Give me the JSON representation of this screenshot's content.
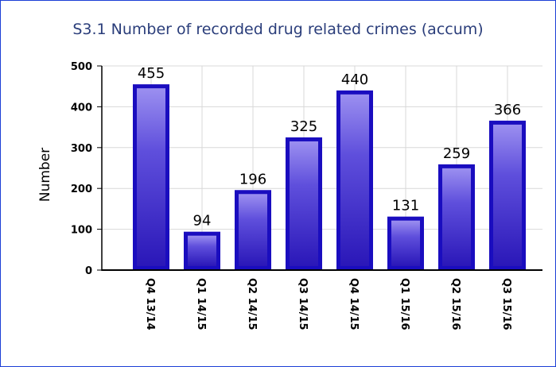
{
  "chart_data": {
    "type": "bar",
    "title": "S3.1 Number of recorded drug related crimes (accum)",
    "ylabel": "Number",
    "xlabel": "",
    "categories": [
      "Q4 13/14",
      "Q1 14/15",
      "Q2 14/15",
      "Q3 14/15",
      "Q4 14/15",
      "Q1 15/16",
      "Q2 15/16",
      "Q3 15/16"
    ],
    "values": [
      455,
      94,
      196,
      325,
      440,
      131,
      259,
      366
    ],
    "ylim": [
      0,
      500
    ],
    "yticks": [
      0,
      100,
      200,
      300,
      400,
      500
    ],
    "grid": true,
    "colors": {
      "bar_dark": "#1a0dbf",
      "bar_light": "#8a7ce8",
      "grid": "#d8d8d8"
    }
  }
}
